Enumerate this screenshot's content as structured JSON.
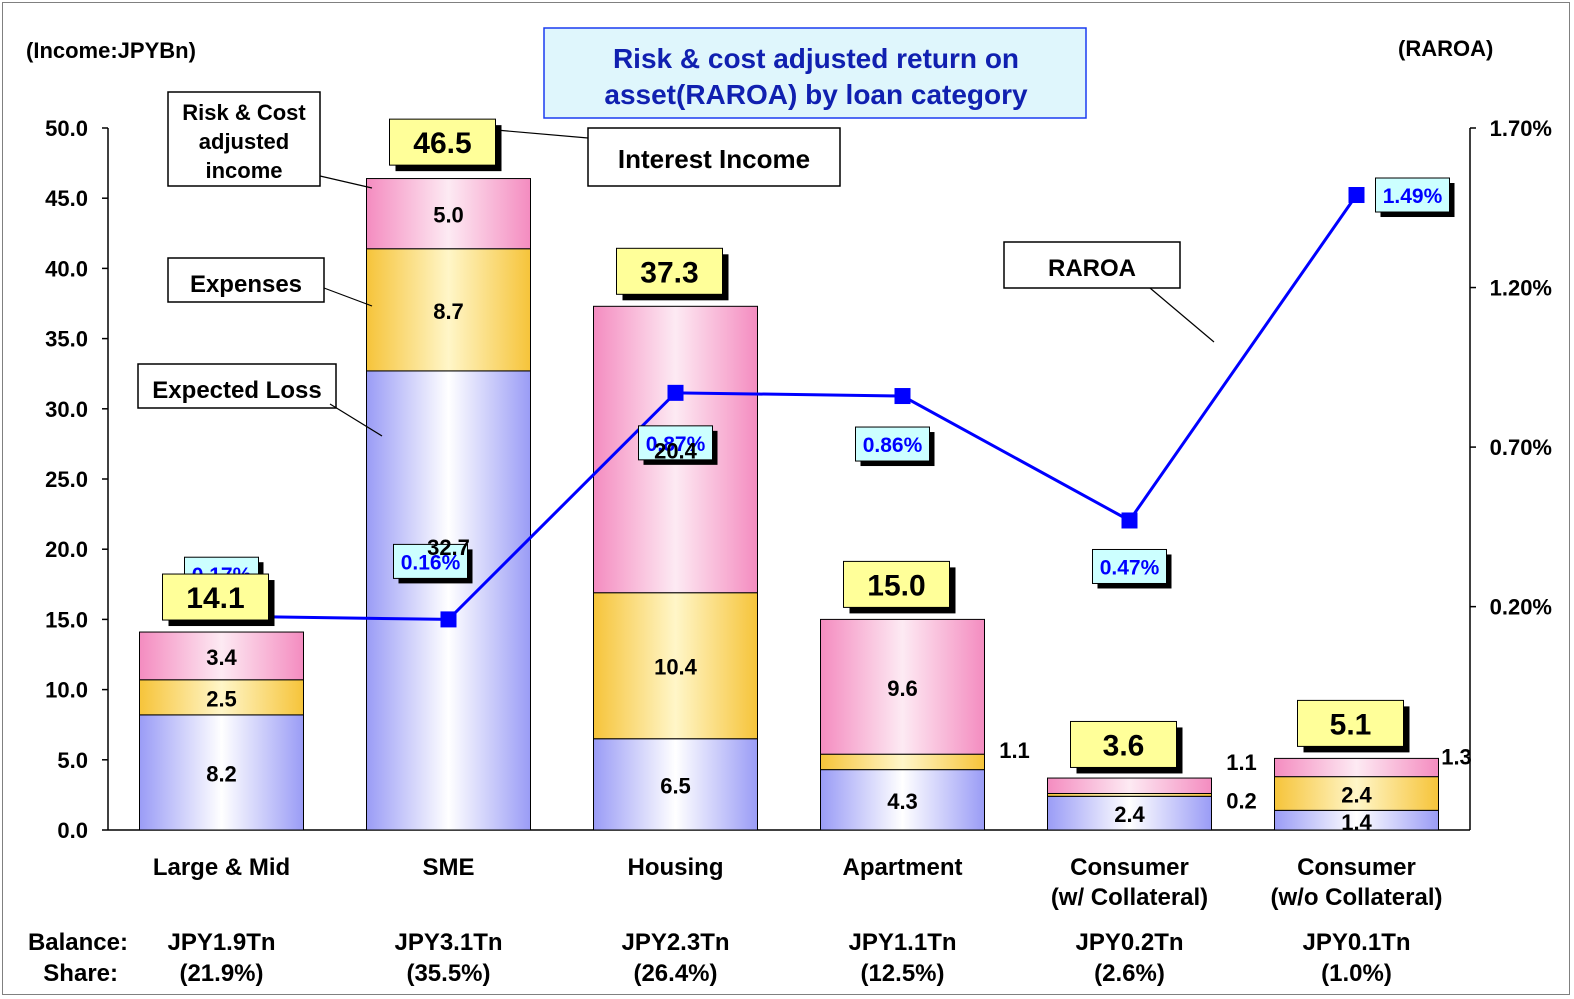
{
  "chart_data": {
    "type": "bar",
    "title": "Risk & cost adjusted return on asset(RAROA) by loan category",
    "title_lines": [
      "Risk & cost adjusted return on",
      "asset(RAROA)  by loan category"
    ],
    "y_left_label": "(Income:JPYBn)",
    "y_right_label": "(RAROA)",
    "ylim": [
      0,
      50
    ],
    "y_ticks": [
      "0.0",
      "5.0",
      "10.0",
      "15.0",
      "20.0",
      "25.0",
      "30.0",
      "35.0",
      "40.0",
      "45.0",
      "50.0"
    ],
    "y2_ticks": [
      {
        "label": "0.20%",
        "value": 0.2
      },
      {
        "label": "0.70%",
        "value": 0.7
      },
      {
        "label": "1.20%",
        "value": 1.2
      },
      {
        "label": "1.70%",
        "value": 1.7
      }
    ],
    "y2lim": [
      -0.5,
      1.7
    ],
    "categories": [
      {
        "line1": "Large & Mid",
        "line2": "",
        "balance": "JPY1.9Tn",
        "share": "(21.9%)"
      },
      {
        "line1": "SME",
        "line2": "",
        "balance": "JPY3.1Tn",
        "share": "(35.5%)"
      },
      {
        "line1": "Housing",
        "line2": "",
        "balance": "JPY2.3Tn",
        "share": "(26.4%)"
      },
      {
        "line1": "Apartment",
        "line2": "",
        "balance": "JPY1.1Tn",
        "share": "(12.5%)"
      },
      {
        "line1": "Consumer",
        "line2": "(w/ Collateral)",
        "balance": "JPY0.2Tn",
        "share": "(2.6%)"
      },
      {
        "line1": "Consumer",
        "line2": "(w/o Collateral)",
        "balance": "JPY0.1Tn",
        "share": "(1.0%)"
      }
    ],
    "balance_label": "Balance:",
    "share_label": "Share:",
    "series": [
      {
        "key": "expected_loss",
        "values": [
          8.2,
          32.7,
          6.5,
          4.3,
          2.4,
          1.4
        ],
        "labels": [
          "8.2",
          "32.7",
          "6.5",
          "4.3",
          "2.4",
          "1.4"
        ],
        "color": "#9a9cf6"
      },
      {
        "key": "expenses",
        "values": [
          2.5,
          8.7,
          10.4,
          1.1,
          0.2,
          2.4
        ],
        "labels": [
          "2.5",
          "8.7",
          "10.4",
          "1.1",
          "0.2",
          "2.4"
        ],
        "color": "#f6c43a"
      },
      {
        "key": "risk_cost_adjusted_income",
        "values": [
          3.4,
          5.0,
          20.4,
          9.6,
          1.1,
          1.3
        ],
        "labels": [
          "3.4",
          "5.0",
          "20.4",
          "9.6",
          "1.1",
          "1.3"
        ],
        "color": "#f48cc0"
      }
    ],
    "totals": [
      "14.1",
      "46.5",
      "37.3",
      "15.0",
      "3.6",
      "5.1"
    ],
    "raroa": {
      "values": [
        0.17,
        0.16,
        0.87,
        0.86,
        0.47,
        1.49
      ],
      "labels": [
        "0.17%",
        "0.16%",
        "0.87%",
        "0.86%",
        "0.47%",
        "1.49%"
      ],
      "color": "#0000ff"
    },
    "callouts": {
      "risk_cost": [
        "Risk & Cost",
        "adjusted",
        "income"
      ],
      "expenses": "Expenses",
      "expected_loss": "Expected Loss",
      "interest_income": "Interest Income",
      "raroa": "RAROA"
    }
  }
}
